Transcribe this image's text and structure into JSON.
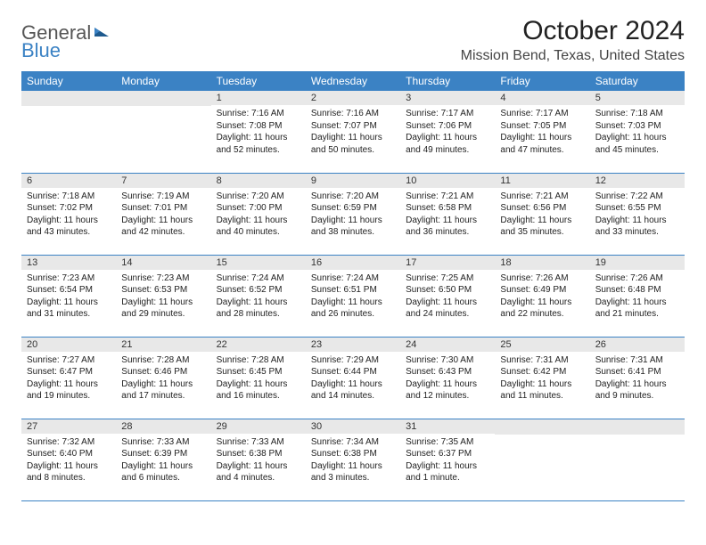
{
  "logo": {
    "part1": "General",
    "part2": "Blue"
  },
  "title": "October 2024",
  "location": "Mission Bend, Texas, United States",
  "colors": {
    "header_bg": "#3b82c4",
    "header_text": "#ffffff",
    "daynum_bg": "#e8e8e8",
    "border": "#3b82c4",
    "body_text": "#222222"
  },
  "day_headers": [
    "Sunday",
    "Monday",
    "Tuesday",
    "Wednesday",
    "Thursday",
    "Friday",
    "Saturday"
  ],
  "weeks": [
    [
      {
        "n": "",
        "sr": "",
        "ss": "",
        "dl": ""
      },
      {
        "n": "",
        "sr": "",
        "ss": "",
        "dl": ""
      },
      {
        "n": "1",
        "sr": "Sunrise: 7:16 AM",
        "ss": "Sunset: 7:08 PM",
        "dl": "Daylight: 11 hours and 52 minutes."
      },
      {
        "n": "2",
        "sr": "Sunrise: 7:16 AM",
        "ss": "Sunset: 7:07 PM",
        "dl": "Daylight: 11 hours and 50 minutes."
      },
      {
        "n": "3",
        "sr": "Sunrise: 7:17 AM",
        "ss": "Sunset: 7:06 PM",
        "dl": "Daylight: 11 hours and 49 minutes."
      },
      {
        "n": "4",
        "sr": "Sunrise: 7:17 AM",
        "ss": "Sunset: 7:05 PM",
        "dl": "Daylight: 11 hours and 47 minutes."
      },
      {
        "n": "5",
        "sr": "Sunrise: 7:18 AM",
        "ss": "Sunset: 7:03 PM",
        "dl": "Daylight: 11 hours and 45 minutes."
      }
    ],
    [
      {
        "n": "6",
        "sr": "Sunrise: 7:18 AM",
        "ss": "Sunset: 7:02 PM",
        "dl": "Daylight: 11 hours and 43 minutes."
      },
      {
        "n": "7",
        "sr": "Sunrise: 7:19 AM",
        "ss": "Sunset: 7:01 PM",
        "dl": "Daylight: 11 hours and 42 minutes."
      },
      {
        "n": "8",
        "sr": "Sunrise: 7:20 AM",
        "ss": "Sunset: 7:00 PM",
        "dl": "Daylight: 11 hours and 40 minutes."
      },
      {
        "n": "9",
        "sr": "Sunrise: 7:20 AM",
        "ss": "Sunset: 6:59 PM",
        "dl": "Daylight: 11 hours and 38 minutes."
      },
      {
        "n": "10",
        "sr": "Sunrise: 7:21 AM",
        "ss": "Sunset: 6:58 PM",
        "dl": "Daylight: 11 hours and 36 minutes."
      },
      {
        "n": "11",
        "sr": "Sunrise: 7:21 AM",
        "ss": "Sunset: 6:56 PM",
        "dl": "Daylight: 11 hours and 35 minutes."
      },
      {
        "n": "12",
        "sr": "Sunrise: 7:22 AM",
        "ss": "Sunset: 6:55 PM",
        "dl": "Daylight: 11 hours and 33 minutes."
      }
    ],
    [
      {
        "n": "13",
        "sr": "Sunrise: 7:23 AM",
        "ss": "Sunset: 6:54 PM",
        "dl": "Daylight: 11 hours and 31 minutes."
      },
      {
        "n": "14",
        "sr": "Sunrise: 7:23 AM",
        "ss": "Sunset: 6:53 PM",
        "dl": "Daylight: 11 hours and 29 minutes."
      },
      {
        "n": "15",
        "sr": "Sunrise: 7:24 AM",
        "ss": "Sunset: 6:52 PM",
        "dl": "Daylight: 11 hours and 28 minutes."
      },
      {
        "n": "16",
        "sr": "Sunrise: 7:24 AM",
        "ss": "Sunset: 6:51 PM",
        "dl": "Daylight: 11 hours and 26 minutes."
      },
      {
        "n": "17",
        "sr": "Sunrise: 7:25 AM",
        "ss": "Sunset: 6:50 PM",
        "dl": "Daylight: 11 hours and 24 minutes."
      },
      {
        "n": "18",
        "sr": "Sunrise: 7:26 AM",
        "ss": "Sunset: 6:49 PM",
        "dl": "Daylight: 11 hours and 22 minutes."
      },
      {
        "n": "19",
        "sr": "Sunrise: 7:26 AM",
        "ss": "Sunset: 6:48 PM",
        "dl": "Daylight: 11 hours and 21 minutes."
      }
    ],
    [
      {
        "n": "20",
        "sr": "Sunrise: 7:27 AM",
        "ss": "Sunset: 6:47 PM",
        "dl": "Daylight: 11 hours and 19 minutes."
      },
      {
        "n": "21",
        "sr": "Sunrise: 7:28 AM",
        "ss": "Sunset: 6:46 PM",
        "dl": "Daylight: 11 hours and 17 minutes."
      },
      {
        "n": "22",
        "sr": "Sunrise: 7:28 AM",
        "ss": "Sunset: 6:45 PM",
        "dl": "Daylight: 11 hours and 16 minutes."
      },
      {
        "n": "23",
        "sr": "Sunrise: 7:29 AM",
        "ss": "Sunset: 6:44 PM",
        "dl": "Daylight: 11 hours and 14 minutes."
      },
      {
        "n": "24",
        "sr": "Sunrise: 7:30 AM",
        "ss": "Sunset: 6:43 PM",
        "dl": "Daylight: 11 hours and 12 minutes."
      },
      {
        "n": "25",
        "sr": "Sunrise: 7:31 AM",
        "ss": "Sunset: 6:42 PM",
        "dl": "Daylight: 11 hours and 11 minutes."
      },
      {
        "n": "26",
        "sr": "Sunrise: 7:31 AM",
        "ss": "Sunset: 6:41 PM",
        "dl": "Daylight: 11 hours and 9 minutes."
      }
    ],
    [
      {
        "n": "27",
        "sr": "Sunrise: 7:32 AM",
        "ss": "Sunset: 6:40 PM",
        "dl": "Daylight: 11 hours and 8 minutes."
      },
      {
        "n": "28",
        "sr": "Sunrise: 7:33 AM",
        "ss": "Sunset: 6:39 PM",
        "dl": "Daylight: 11 hours and 6 minutes."
      },
      {
        "n": "29",
        "sr": "Sunrise: 7:33 AM",
        "ss": "Sunset: 6:38 PM",
        "dl": "Daylight: 11 hours and 4 minutes."
      },
      {
        "n": "30",
        "sr": "Sunrise: 7:34 AM",
        "ss": "Sunset: 6:38 PM",
        "dl": "Daylight: 11 hours and 3 minutes."
      },
      {
        "n": "31",
        "sr": "Sunrise: 7:35 AM",
        "ss": "Sunset: 6:37 PM",
        "dl": "Daylight: 11 hours and 1 minute."
      },
      {
        "n": "",
        "sr": "",
        "ss": "",
        "dl": ""
      },
      {
        "n": "",
        "sr": "",
        "ss": "",
        "dl": ""
      }
    ]
  ]
}
